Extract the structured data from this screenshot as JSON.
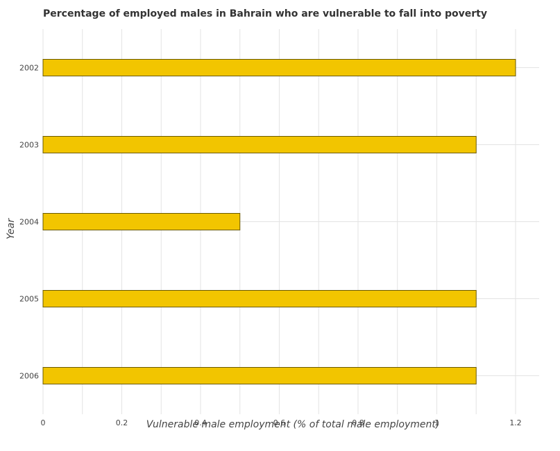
{
  "colors": {
    "bar": "#f2c500",
    "bar_edge": "#6b5a00",
    "grid": "#e3e3e3",
    "text": "#444444"
  },
  "chart_data": {
    "type": "bar",
    "orientation": "horizontal",
    "title": "Percentage of employed males in Bahrain who are vulnerable to fall into poverty",
    "xlabel": "Vulnerable male employment (% of total male employment)",
    "ylabel": "Year",
    "categories": [
      "2002",
      "2003",
      "2004",
      "2005",
      "2006"
    ],
    "values": [
      1.2,
      1.1,
      0.5,
      1.1,
      1.1
    ],
    "xlim": [
      0,
      1.26
    ],
    "xticks": [
      0,
      0.2,
      0.4,
      0.6,
      0.8,
      1,
      1.2
    ],
    "xtick_labels": [
      "0",
      "0.2",
      "0.4",
      "0.6",
      "0.8",
      "1",
      "1.2"
    ],
    "grid": true,
    "legend": "none"
  }
}
